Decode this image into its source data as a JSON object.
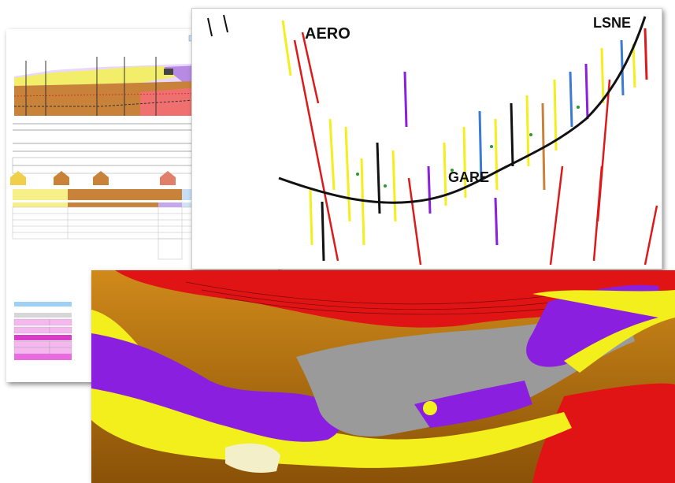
{
  "figure": {
    "labels": {
      "aero": "AERO",
      "lsne": "LSNE",
      "gare": "GARE"
    },
    "colors": {
      "purple": "#8a1fe0",
      "yellow": "#f2ef1c",
      "grey": "#9a9a9a",
      "red": "#e11a1a",
      "brown": "#b86f12",
      "pink": "#f07bdc",
      "black": "#111111"
    },
    "icons": [
      "geological-cross-section",
      "borehole-log-profile",
      "3d-geological-model"
    ]
  }
}
